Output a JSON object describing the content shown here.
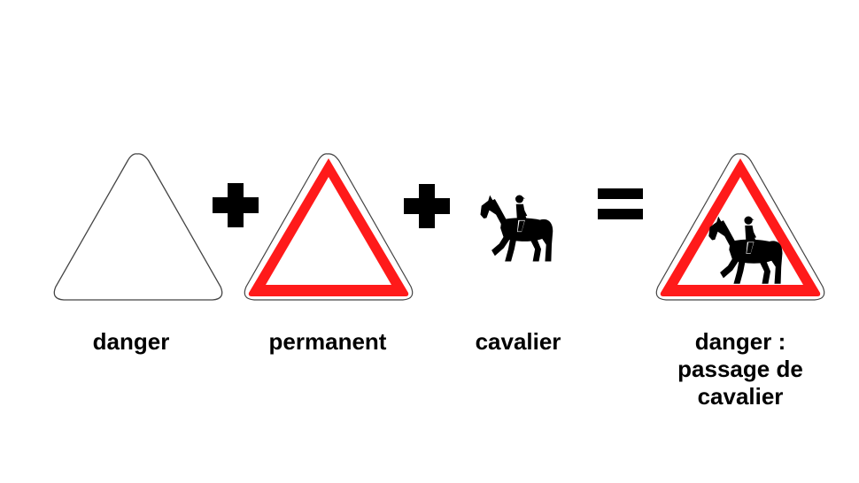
{
  "items": [
    {
      "label": "danger"
    },
    {
      "label": "permanent"
    },
    {
      "label": "cavalier"
    }
  ],
  "result": {
    "label_lines": [
      "danger :",
      "passage de",
      "cavalier"
    ]
  },
  "colors": {
    "sign_red": "#ff1a1a",
    "symbol_black": "#000000",
    "outline_gray": "#444444"
  },
  "icons": [
    "white-triangle-icon",
    "plus-icon",
    "red-border-triangle-icon",
    "horse-rider-icon",
    "equals-icon",
    "horse-rider-warning-sign-icon"
  ]
}
